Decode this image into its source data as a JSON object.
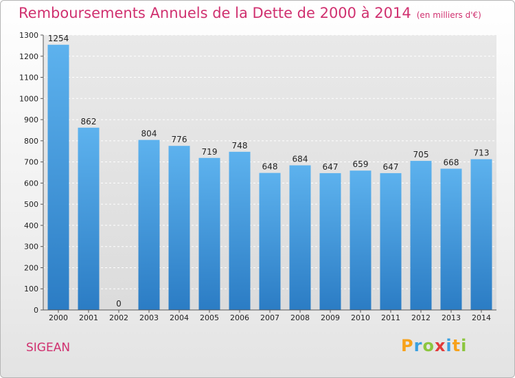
{
  "title": "Remboursements Annuels de la Dette de 2000 à 2014",
  "unit": "(en milliers d'€)",
  "commune": "SIGEAN",
  "brand": {
    "letters": [
      "P",
      "r",
      "o",
      "x",
      "i",
      "t",
      "i"
    ],
    "colors": [
      "#f7a21b",
      "#3aa0e0",
      "#8cc63f",
      "#e23a3a",
      "#3aa0e0",
      "#f7a21b",
      "#8cc63f"
    ]
  },
  "chart_data": {
    "type": "bar",
    "categories": [
      "2000",
      "2001",
      "2002",
      "2003",
      "2004",
      "2005",
      "2006",
      "2007",
      "2008",
      "2009",
      "2010",
      "2011",
      "2012",
      "2013",
      "2014"
    ],
    "values": [
      1254,
      862,
      0,
      804,
      776,
      719,
      748,
      648,
      684,
      647,
      659,
      647,
      705,
      668,
      713
    ],
    "ylim": [
      0,
      1300
    ],
    "yticks": [
      0,
      100,
      200,
      300,
      400,
      500,
      600,
      700,
      800,
      900,
      1000,
      1100,
      1200,
      1300
    ],
    "grid": true,
    "bar_color": "#4a9fe0"
  }
}
